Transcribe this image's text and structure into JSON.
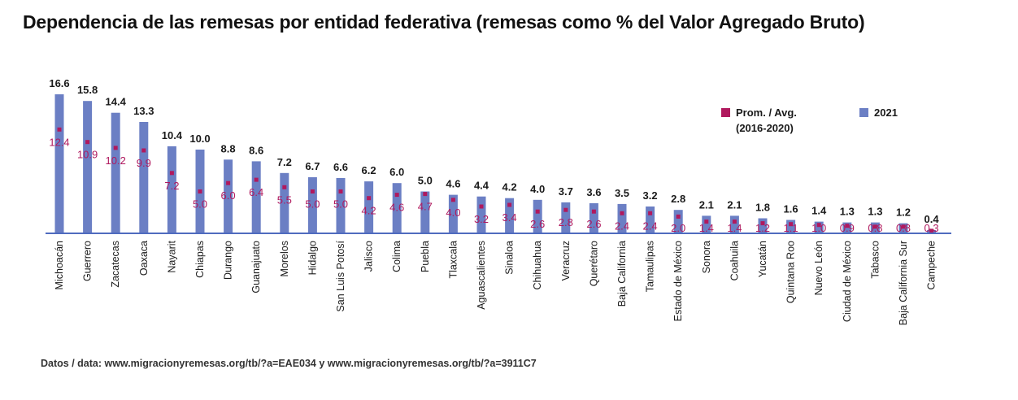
{
  "title": "Dependencia de las remesas por entidad federativa (remesas como % del Valor Agregado Bruto)",
  "source": "Datos / data: www.migracionyremesas.org/tb/?a=EAE034 y www.migracionyremesas.org/tb/?a=3911C7",
  "colors": {
    "bar": "#6b7fc4",
    "avg": "#b0195e",
    "axis": "#4f6bbf",
    "label": "#1a1a1a"
  },
  "chart_data": {
    "type": "bar",
    "title": "Dependencia de las remesas por entidad federativa (remesas como % del Valor Agregado Bruto)",
    "xlabel": "",
    "ylabel": "",
    "ylim": [
      0,
      16.6
    ],
    "grid": false,
    "legend_position": "top-right",
    "categories": [
      "Michoacán",
      "Guerrero",
      "Zacatecas",
      "Oaxaca",
      "Nayarit",
      "Chiapas",
      "Durango",
      "Guanajuato",
      "Morelos",
      "Hidalgo",
      "San Luis Potosí",
      "Jalisco",
      "Colima",
      "Puebla",
      "Tlaxcala",
      "Aguascalientes",
      "Sinaloa",
      "Chihuahua",
      "Veracruz",
      "Querétaro",
      "Baja California",
      "Tamaulipas",
      "Estado de México",
      "Sonora",
      "Coahuila",
      "Yucatán",
      "Quintana Roo",
      "Nuevo León",
      "Ciudad de México",
      "Tabasco",
      "Baja California Sur",
      "Campeche"
    ],
    "series": [
      {
        "name": "2021",
        "kind": "bar",
        "values": [
          16.6,
          15.8,
          14.4,
          13.3,
          10.4,
          10.0,
          8.8,
          8.6,
          7.2,
          6.7,
          6.6,
          6.2,
          6.0,
          5.0,
          4.6,
          4.4,
          4.2,
          4.0,
          3.7,
          3.6,
          3.5,
          3.2,
          2.8,
          2.1,
          2.1,
          1.8,
          1.6,
          1.4,
          1.3,
          1.3,
          1.2,
          0.4
        ],
        "labels": [
          "16.6",
          "15.8",
          "14.4",
          "13.3",
          "10.4",
          "10.0",
          "8.8",
          "8.6",
          "7.2",
          "6.7",
          "6.6",
          "6.2",
          "6.0",
          "5.0",
          "4.6",
          "4.4",
          "4.2",
          "4.0",
          "3.7",
          "3.6",
          "3.5",
          "3.2",
          "2.8",
          "2.1",
          "2.1",
          "1.8",
          "1.6",
          "1.4",
          "1.3",
          "1.3",
          "1.2",
          "0.4"
        ]
      },
      {
        "name": "Prom. / Avg. (2016-2020)",
        "kind": "marker",
        "values": [
          12.4,
          10.9,
          10.2,
          9.9,
          7.2,
          5.0,
          6.0,
          6.4,
          5.5,
          5.0,
          5.0,
          4.2,
          4.6,
          4.7,
          4.0,
          3.2,
          3.4,
          2.6,
          2.8,
          2.6,
          2.4,
          2.4,
          2.0,
          1.4,
          1.4,
          1.2,
          1.1,
          1.0,
          0.9,
          0.8,
          0.8,
          0.3
        ],
        "labels": [
          "12.4",
          "10.9",
          "10.2",
          "9.9",
          "7.2",
          "5.0",
          "6.0",
          "6.4",
          "5.5",
          "5.0",
          "5.0",
          "4.2",
          "4.6",
          "4.7",
          "4.0",
          "3.2",
          "3.4",
          "2.6",
          "2.8",
          "2.6",
          "2.4",
          "2.4",
          "2.0",
          "1.4",
          "1.4",
          "1.2",
          "1.1",
          "1.0",
          "0.9",
          "0.8",
          "0.8",
          "0.3"
        ]
      }
    ],
    "legend": [
      {
        "label": "Prom. / Avg.",
        "sublabel": "(2016-2020)",
        "swatch": "avg"
      },
      {
        "label": "2021",
        "sublabel": "",
        "swatch": "bar"
      }
    ]
  }
}
